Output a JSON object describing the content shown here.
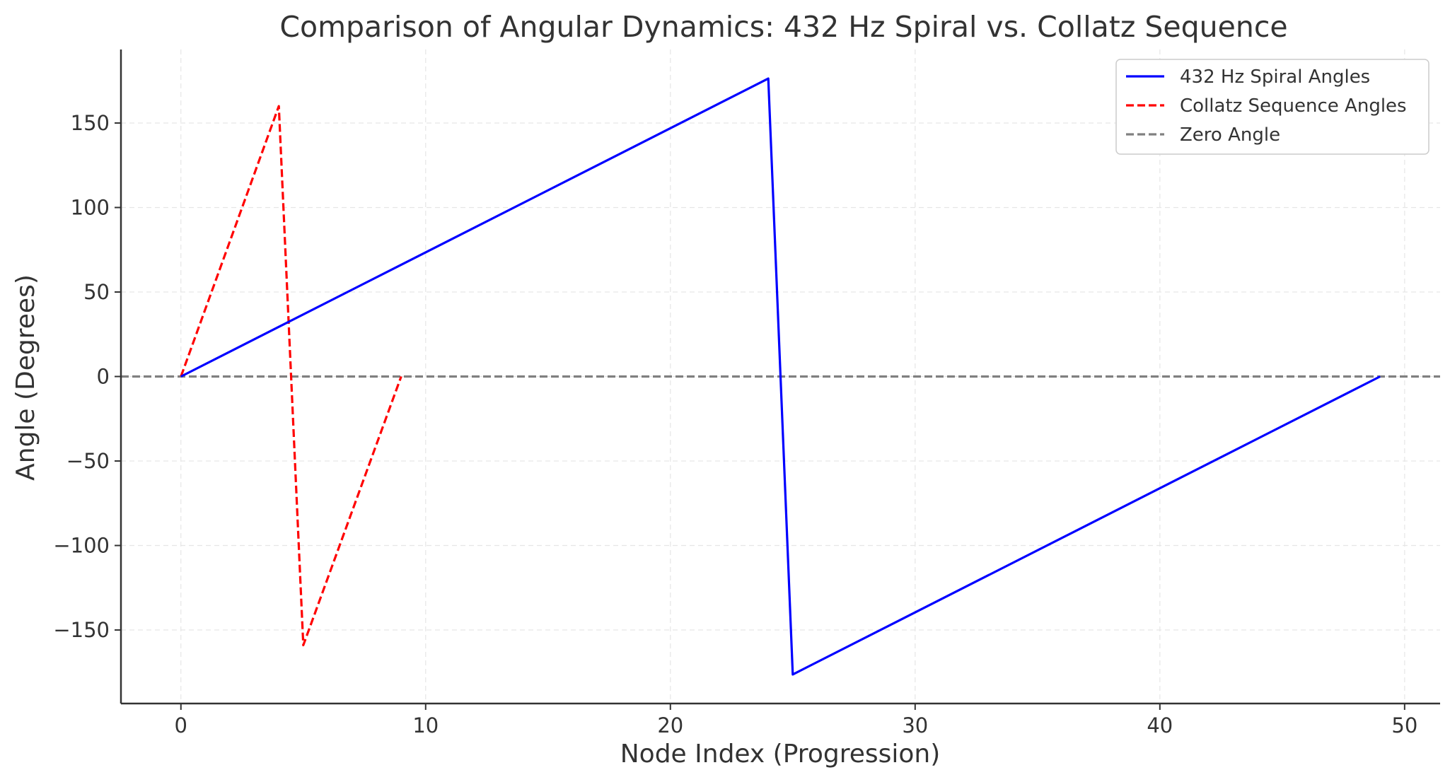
{
  "chart_data": {
    "type": "line",
    "title": "Comparison of Angular Dynamics: 432 Hz Spiral vs. Collatz Sequence",
    "xlabel": "Node Index (Progression)",
    "ylabel": "Angle (Degrees)",
    "xlim": [
      -2.45,
      51.45
    ],
    "ylim": [
      -193.5,
      193.5
    ],
    "x_ticks": [
      0,
      10,
      20,
      30,
      40,
      50
    ],
    "x_tick_labels": [
      "0",
      "10",
      "20",
      "30",
      "40",
      "50"
    ],
    "y_ticks": [
      150,
      100,
      50,
      0,
      -50,
      -100,
      -150
    ],
    "y_tick_labels": [
      "150",
      "100",
      "50",
      "0",
      "−50",
      "−100",
      "−150"
    ],
    "grid": true,
    "legend_position": "top-right",
    "series": [
      {
        "name": "432 Hz Spiral Angles",
        "color": "#0000ff",
        "style": "solid",
        "x": [
          0,
          24,
          25,
          49
        ],
        "y": [
          0,
          176.3,
          -176.3,
          0
        ]
      },
      {
        "name": "Collatz Sequence Angles",
        "color": "#ff0000",
        "style": "dashed",
        "x": [
          0,
          4,
          5,
          9
        ],
        "y": [
          0,
          160,
          -159,
          0
        ]
      },
      {
        "name": "Zero Angle",
        "color": "#808080",
        "style": "dashed",
        "hline": 0
      }
    ]
  }
}
